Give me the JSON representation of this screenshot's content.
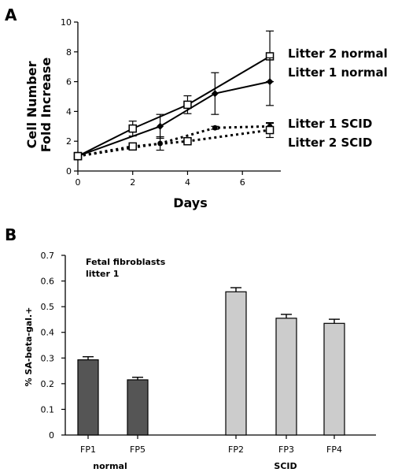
{
  "chart_data": [
    {
      "type": "line",
      "panel": "A",
      "xlabel": "Days",
      "ylabel_lines": [
        "Cell Number",
        "Fold Increase"
      ],
      "xlim": [
        0,
        7.4
      ],
      "ylim": [
        0,
        10
      ],
      "xticks": [
        0,
        2,
        4,
        6
      ],
      "yticks": [
        0,
        2,
        4,
        6,
        8,
        10
      ],
      "grid": false,
      "legend_placement": "right, labels at line ends",
      "series": [
        {
          "name": "Litter 2 normal",
          "line": "solid",
          "marker": "open-square",
          "color": "#000000",
          "x": [
            0,
            2,
            4,
            7
          ],
          "y": [
            1.0,
            2.85,
            4.45,
            7.7
          ],
          "err": [
            0.15,
            0.5,
            0.6,
            1.7
          ]
        },
        {
          "name": "Litter 1 normal",
          "line": "solid",
          "marker": "filled-diamond",
          "color": "#000000",
          "x": [
            0,
            3,
            5,
            7
          ],
          "y": [
            1.0,
            3.0,
            5.2,
            6.0
          ],
          "err": [
            0.15,
            0.8,
            1.4,
            1.6
          ]
        },
        {
          "name": "Litter 1 SCID",
          "line": "dotted",
          "marker": "filled-circle",
          "color": "#000000",
          "x": [
            0,
            3,
            5,
            7
          ],
          "y": [
            1.0,
            1.85,
            2.9,
            3.0
          ],
          "err": [
            0.15,
            0.45,
            0.1,
            0.2
          ]
        },
        {
          "name": "Litter 2 SCID",
          "line": "dotted",
          "marker": "open-square",
          "color": "#000000",
          "x": [
            0,
            2,
            4,
            7
          ],
          "y": [
            1.0,
            1.65,
            2.0,
            2.75
          ],
          "err": [
            0.15,
            0.15,
            0.2,
            0.5
          ]
        }
      ]
    },
    {
      "type": "bar",
      "panel": "B",
      "ylabel": "% SA-beta-gal.+",
      "ylim": [
        0,
        0.7
      ],
      "yticks": [
        0,
        0.1,
        0.2,
        0.3,
        0.4,
        0.5,
        0.6,
        0.7
      ],
      "ytick_labels": [
        "0",
        "0.1",
        "0.2",
        "0.3",
        "0.4",
        "0.5",
        "0.6",
        "0.7"
      ],
      "grid": false,
      "annotation_lines": [
        "Fetal fibroblasts",
        "litter 1"
      ],
      "categories": [
        "FP1",
        "FP5",
        "FP2",
        "FP3",
        "FP4"
      ],
      "values": [
        0.293,
        0.215,
        0.558,
        0.455,
        0.435
      ],
      "errors": [
        0.012,
        0.01,
        0.016,
        0.015,
        0.016
      ],
      "bar_colors": [
        "#555555",
        "#555555",
        "#cccccc",
        "#cccccc",
        "#cccccc"
      ],
      "groups": [
        {
          "label": "normal",
          "categories": [
            "FP1",
            "FP5"
          ]
        },
        {
          "label": "SCID",
          "categories": [
            "FP2",
            "FP3",
            "FP4"
          ]
        }
      ]
    }
  ]
}
